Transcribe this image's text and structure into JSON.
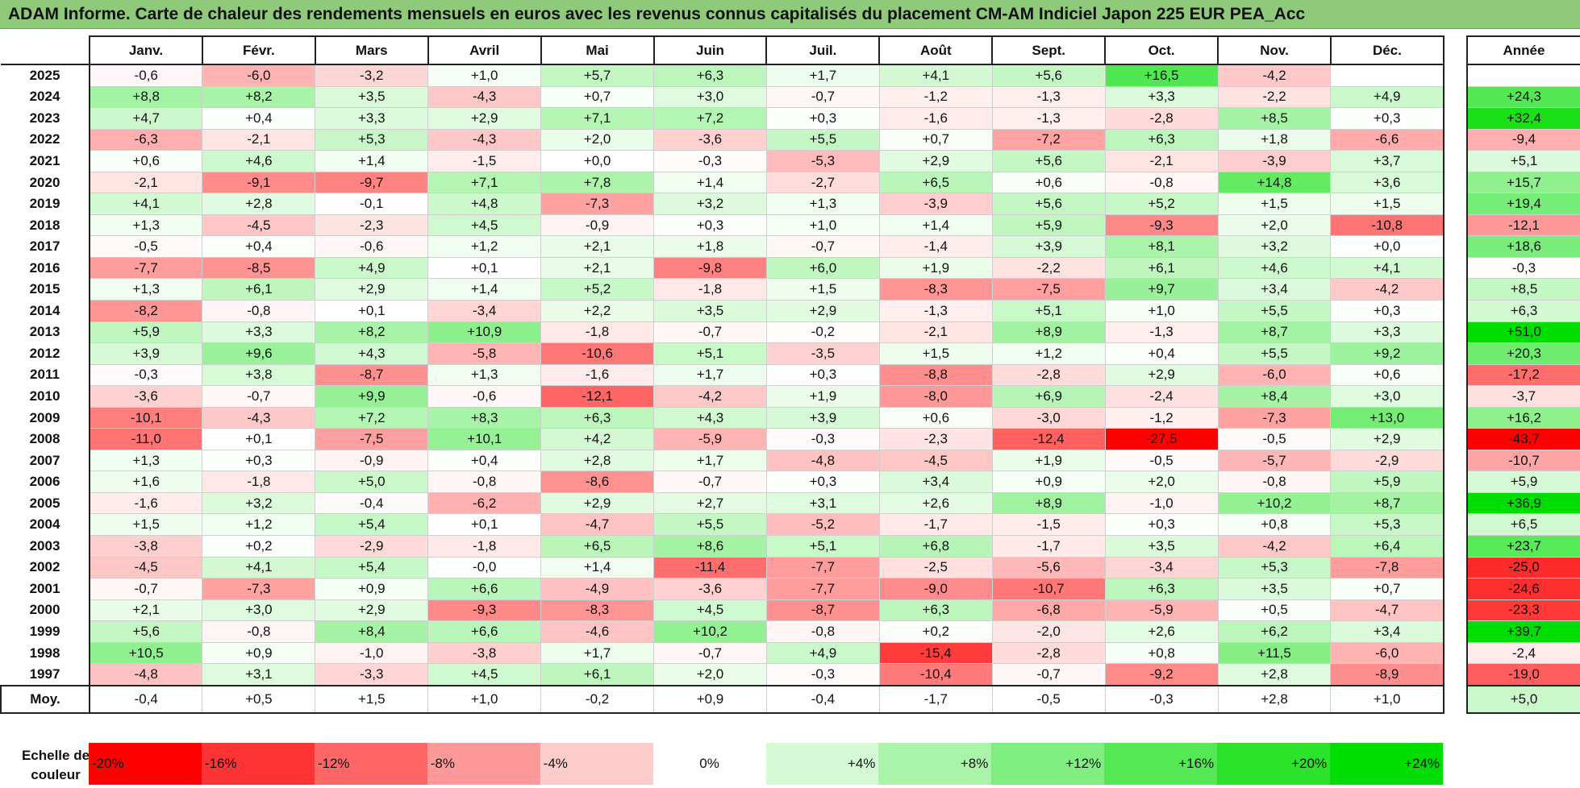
{
  "title": "ADAM Informe. Carte de chaleur des rendements mensuels en euros avec les revenus connus capitalisés du placement CM-AM Indiciel Japon 225 EUR PEA_Acc",
  "colors": {
    "negative_max": "#ff0000",
    "neutral": "#ffffff",
    "positive_max": "#00dd00",
    "header_bar": "#8fc97a"
  },
  "chart_data": {
    "type": "heatmap",
    "title": "ADAM Informe. Carte de chaleur des rendements mensuels en euros avec les revenus connus capitalisés du placement CM-AM Indiciel Japon 225 EUR PEA_Acc",
    "columns": [
      "Janv.",
      "Févr.",
      "Mars",
      "Avril",
      "Mai",
      "Juin",
      "Juil.",
      "Août",
      "Sept.",
      "Oct.",
      "Nov.",
      "Déc."
    ],
    "annual_label": "Année",
    "average_label": "Moy.",
    "rows": [
      {
        "year": "2025",
        "values": [
          "-0,6",
          "-6,0",
          "-3,2",
          "+1,0",
          "+5,7",
          "+6,3",
          "+1,7",
          "+4,1",
          "+5,6",
          "+16,5",
          "-4,2",
          ""
        ],
        "annual": ""
      },
      {
        "year": "2024",
        "values": [
          "+8,8",
          "+8,2",
          "+3,5",
          "-4,3",
          "+0,7",
          "+3,0",
          "-0,7",
          "-1,2",
          "-1,3",
          "+3,3",
          "-2,2",
          "+4,9"
        ],
        "annual": "+24,3"
      },
      {
        "year": "2023",
        "values": [
          "+4,7",
          "+0,4",
          "+3,3",
          "+2,9",
          "+7,1",
          "+7,2",
          "+0,3",
          "-1,6",
          "-1,3",
          "-2,8",
          "+8,5",
          "+0,3"
        ],
        "annual": "+32,4"
      },
      {
        "year": "2022",
        "values": [
          "-6,3",
          "-2,1",
          "+5,3",
          "-4,3",
          "+2,0",
          "-3,6",
          "+5,5",
          "+0,7",
          "-7,2",
          "+6,3",
          "+1,8",
          "-6,6"
        ],
        "annual": "-9,4"
      },
      {
        "year": "2021",
        "values": [
          "+0,6",
          "+4,6",
          "+1,4",
          "-1,5",
          "+0,0",
          "-0,3",
          "-5,3",
          "+2,9",
          "+5,6",
          "-2,1",
          "-3,9",
          "+3,7"
        ],
        "annual": "+5,1"
      },
      {
        "year": "2020",
        "values": [
          "-2,1",
          "-9,1",
          "-9,7",
          "+7,1",
          "+7,8",
          "+1,4",
          "-2,7",
          "+6,5",
          "+0,6",
          "-0,8",
          "+14,8",
          "+3,6"
        ],
        "annual": "+15,7"
      },
      {
        "year": "2019",
        "values": [
          "+4,1",
          "+2,8",
          "-0,1",
          "+4,8",
          "-7,3",
          "+3,2",
          "+1,3",
          "-3,9",
          "+5,6",
          "+5,2",
          "+1,5",
          "+1,5"
        ],
        "annual": "+19,4"
      },
      {
        "year": "2018",
        "values": [
          "+1,3",
          "-4,5",
          "-2,3",
          "+4,5",
          "-0,9",
          "+0,3",
          "+1,0",
          "+1,4",
          "+5,9",
          "-9,3",
          "+2,0",
          "-10,8"
        ],
        "annual": "-12,1"
      },
      {
        "year": "2017",
        "values": [
          "-0,5",
          "+0,4",
          "-0,6",
          "+1,2",
          "+2,1",
          "+1,8",
          "-0,7",
          "-1,4",
          "+3,9",
          "+8,1",
          "+3,2",
          "+0,0"
        ],
        "annual": "+18,6"
      },
      {
        "year": "2016",
        "values": [
          "-7,7",
          "-8,5",
          "+4,9",
          "+0,1",
          "+2,1",
          "-9,8",
          "+6,0",
          "+1,9",
          "-2,2",
          "+6,1",
          "+4,6",
          "+4,1"
        ],
        "annual": "-0,3"
      },
      {
        "year": "2015",
        "values": [
          "+1,3",
          "+6,1",
          "+2,9",
          "+1,4",
          "+5,2",
          "-1,8",
          "+1,5",
          "-8,3",
          "-7,5",
          "+9,7",
          "+3,4",
          "-4,2"
        ],
        "annual": "+8,5"
      },
      {
        "year": "2014",
        "values": [
          "-8,2",
          "-0,8",
          "+0,1",
          "-3,4",
          "+2,2",
          "+3,5",
          "+2,9",
          "-1,3",
          "+5,1",
          "+1,0",
          "+5,5",
          "+0,3"
        ],
        "annual": "+6,3"
      },
      {
        "year": "2013",
        "values": [
          "+5,9",
          "+3,3",
          "+8,2",
          "+10,9",
          "-1,8",
          "-0,7",
          "-0,2",
          "-2,1",
          "+8,9",
          "-1,3",
          "+8,7",
          "+3,3"
        ],
        "annual": "+51,0"
      },
      {
        "year": "2012",
        "values": [
          "+3,9",
          "+9,6",
          "+4,3",
          "-5,8",
          "-10,6",
          "+5,1",
          "-3,5",
          "+1,5",
          "+1,2",
          "+0,4",
          "+5,5",
          "+9,2"
        ],
        "annual": "+20,3"
      },
      {
        "year": "2011",
        "values": [
          "-0,3",
          "+3,8",
          "-8,7",
          "+1,3",
          "-1,6",
          "+1,7",
          "+0,3",
          "-8,8",
          "-2,8",
          "+2,9",
          "-6,0",
          "+0,6"
        ],
        "annual": "-17,2"
      },
      {
        "year": "2010",
        "values": [
          "-3,6",
          "-0,7",
          "+9,9",
          "-0,6",
          "-12,1",
          "-4,2",
          "+1,9",
          "-8,0",
          "+6,9",
          "-2,4",
          "+8,4",
          "+3,0"
        ],
        "annual": "-3,7"
      },
      {
        "year": "2009",
        "values": [
          "-10,1",
          "-4,3",
          "+7,2",
          "+8,3",
          "+6,3",
          "+4,3",
          "+3,9",
          "+0,6",
          "-3,0",
          "-1,2",
          "-7,3",
          "+13,0"
        ],
        "annual": "+16,2"
      },
      {
        "year": "2008",
        "values": [
          "-11,0",
          "+0,1",
          "-7,5",
          "+10,1",
          "+4,2",
          "-5,9",
          "-0,3",
          "-2,3",
          "-12,4",
          "-27,5",
          "-0,5",
          "+2,9"
        ],
        "annual": "-43,7"
      },
      {
        "year": "2007",
        "values": [
          "+1,3",
          "+0,3",
          "-0,9",
          "+0,4",
          "+2,8",
          "+1,7",
          "-4,8",
          "-4,5",
          "+1,9",
          "-0,5",
          "-5,7",
          "-2,9"
        ],
        "annual": "-10,7"
      },
      {
        "year": "2006",
        "values": [
          "+1,6",
          "-1,8",
          "+5,0",
          "-0,8",
          "-8,6",
          "-0,7",
          "+0,3",
          "+3,4",
          "+0,9",
          "+2,0",
          "-0,8",
          "+5,9"
        ],
        "annual": "+5,9"
      },
      {
        "year": "2005",
        "values": [
          "-1,6",
          "+3,2",
          "-0,4",
          "-6,2",
          "+2,9",
          "+2,7",
          "+3,1",
          "+2,6",
          "+8,9",
          "-1,0",
          "+10,2",
          "+8,7"
        ],
        "annual": "+36,9"
      },
      {
        "year": "2004",
        "values": [
          "+1,5",
          "+1,2",
          "+5,4",
          "+0,1",
          "-4,7",
          "+5,5",
          "-5,2",
          "-1,7",
          "-1,5",
          "+0,3",
          "+0,8",
          "+5,3"
        ],
        "annual": "+6,5"
      },
      {
        "year": "2003",
        "values": [
          "-3,8",
          "+0,2",
          "-2,9",
          "-1,8",
          "+6,5",
          "+8,6",
          "+5,1",
          "+6,8",
          "-1,7",
          "+3,5",
          "-4,2",
          "+6,4"
        ],
        "annual": "+23,7"
      },
      {
        "year": "2002",
        "values": [
          "-4,5",
          "+4,1",
          "+5,4",
          "-0,0",
          "+1,4",
          "-11,4",
          "-7,7",
          "-2,5",
          "-5,6",
          "-3,4",
          "+5,3",
          "-7,8"
        ],
        "annual": "-25,0"
      },
      {
        "year": "2001",
        "values": [
          "-0,7",
          "-7,3",
          "+0,9",
          "+6,6",
          "-4,9",
          "-3,6",
          "-7,7",
          "-9,0",
          "-10,7",
          "+6,3",
          "+3,5",
          "+0,7"
        ],
        "annual": "-24,6"
      },
      {
        "year": "2000",
        "values": [
          "+2,1",
          "+3,0",
          "+2,9",
          "-9,3",
          "-8,3",
          "+4,5",
          "-8,7",
          "+6,3",
          "-6,8",
          "-5,9",
          "+0,5",
          "-4,7"
        ],
        "annual": "-23,3"
      },
      {
        "year": "1999",
        "values": [
          "+5,6",
          "-0,8",
          "+8,4",
          "+6,6",
          "-4,6",
          "+10,2",
          "-0,8",
          "+0,2",
          "-2,0",
          "+2,6",
          "+6,2",
          "+3,4"
        ],
        "annual": "+39,7"
      },
      {
        "year": "1998",
        "values": [
          "+10,5",
          "+0,9",
          "-1,0",
          "-3,8",
          "+1,7",
          "-0,7",
          "+4,9",
          "-15,4",
          "-2,8",
          "+0,8",
          "+11,5",
          "-6,0"
        ],
        "annual": "-2,4"
      },
      {
        "year": "1997",
        "values": [
          "-4,8",
          "+3,1",
          "-3,3",
          "+4,5",
          "+6,1",
          "+2,0",
          "-0,3",
          "-10,4",
          "-0,7",
          "-9,2",
          "+2,8",
          "-8,9"
        ],
        "annual": "-19,0"
      }
    ],
    "average": {
      "values": [
        "-0,4",
        "+0,5",
        "+1,5",
        "+1,0",
        "-0,2",
        "+0,9",
        "-0,4",
        "-1,7",
        "-0,5",
        "-0,3",
        "+2,8",
        "+1,0"
      ],
      "annual": "+5,0"
    },
    "color_scale": {
      "label": "Echelle de couleur",
      "stops": [
        "-20%",
        "-16%",
        "-12%",
        "-8%",
        "-4%",
        "0%",
        "+4%",
        "+8%",
        "+12%",
        "+16%",
        "+20%",
        "+24%"
      ]
    }
  }
}
